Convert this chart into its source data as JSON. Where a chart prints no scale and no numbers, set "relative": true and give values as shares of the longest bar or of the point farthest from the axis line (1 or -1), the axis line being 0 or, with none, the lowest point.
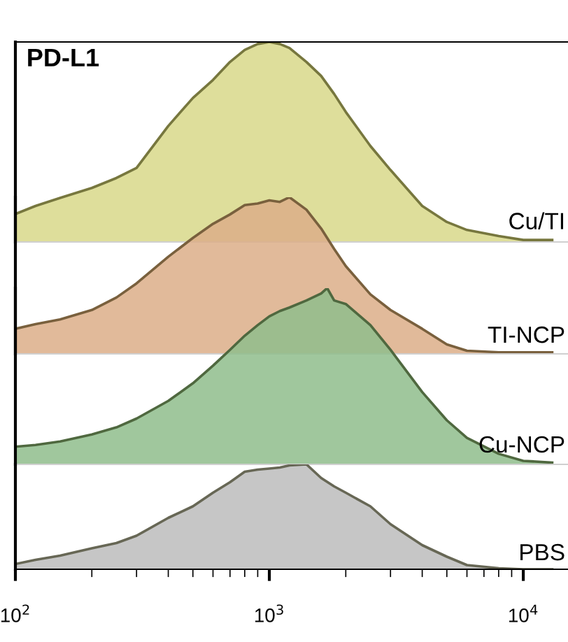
{
  "chart_data": [
    {
      "type": "area",
      "relative": true,
      "title": "PD-L1",
      "tick_labels": false,
      "xlim": [
        100,
        15000
      ],
      "log": "x",
      "x": [
        100,
        120,
        150,
        200,
        250,
        300,
        400,
        500,
        600,
        700,
        800,
        900,
        1000,
        1100,
        1200,
        1400,
        1600,
        1800,
        2000,
        2500,
        3000,
        4000,
        5000,
        6000,
        8000,
        10000,
        13000
      ],
      "series": [
        {
          "name": "Cu/TI",
          "color": "#d8d88a",
          "values": [
            0.14,
            0.18,
            0.22,
            0.27,
            0.32,
            0.37,
            0.58,
            0.72,
            0.81,
            0.9,
            0.96,
            0.99,
            1.0,
            0.99,
            0.97,
            0.9,
            0.83,
            0.74,
            0.65,
            0.48,
            0.36,
            0.18,
            0.1,
            0.06,
            0.03,
            0.01,
            0.01
          ]
        }
      ]
    },
    {
      "type": "area",
      "relative": true,
      "tick_labels": false,
      "xlim": [
        100,
        15000
      ],
      "log": "x",
      "x": [
        100,
        120,
        150,
        200,
        250,
        300,
        400,
        500,
        600,
        700,
        800,
        900,
        1000,
        1100,
        1200,
        1400,
        1600,
        1800,
        2000,
        2500,
        3000,
        4000,
        5000,
        6000,
        8000,
        10000,
        13000
      ],
      "series": [
        {
          "name": "TI-NCP",
          "color": "#dcae88",
          "values": [
            0.16,
            0.19,
            0.22,
            0.28,
            0.36,
            0.45,
            0.62,
            0.74,
            0.83,
            0.89,
            0.95,
            0.96,
            0.98,
            0.97,
            1.0,
            0.92,
            0.8,
            0.67,
            0.56,
            0.38,
            0.28,
            0.16,
            0.06,
            0.02,
            0.01,
            0.01,
            0.01
          ]
        }
      ]
    },
    {
      "type": "area",
      "relative": true,
      "tick_labels": false,
      "xlim": [
        100,
        15000
      ],
      "log": "x",
      "x": [
        100,
        120,
        150,
        200,
        250,
        300,
        400,
        500,
        600,
        700,
        800,
        900,
        1000,
        1100,
        1200,
        1400,
        1600,
        1690,
        1800,
        2000,
        2500,
        3000,
        4000,
        5000,
        6000,
        8000,
        10000,
        13000
      ],
      "series": [
        {
          "name": "Cu-NCP",
          "color": "#8fbd8c",
          "values": [
            0.1,
            0.11,
            0.13,
            0.17,
            0.21,
            0.26,
            0.36,
            0.46,
            0.56,
            0.65,
            0.73,
            0.79,
            0.84,
            0.87,
            0.89,
            0.93,
            0.97,
            1.0,
            0.93,
            0.91,
            0.79,
            0.65,
            0.41,
            0.25,
            0.15,
            0.06,
            0.02,
            0.01
          ]
        }
      ]
    },
    {
      "type": "area",
      "relative": true,
      "tick_labels": "x",
      "xlim": [
        100,
        15000
      ],
      "log": "x",
      "xticks": [
        {
          "value": 100,
          "label": "10$^{2}$"
        },
        {
          "value": 1000,
          "label": "10$^{3}$"
        },
        {
          "value": 10000,
          "label": "10$^{4}$"
        }
      ],
      "x": [
        100,
        120,
        150,
        200,
        250,
        300,
        400,
        500,
        600,
        700,
        800,
        900,
        1000,
        1100,
        1200,
        1400,
        1600,
        1800,
        2000,
        2500,
        3000,
        4000,
        5000,
        6000,
        8000,
        10000,
        13000
      ],
      "series": [
        {
          "name": "PBS",
          "color": "#bcbcbc",
          "values": [
            0.05,
            0.09,
            0.13,
            0.2,
            0.25,
            0.32,
            0.49,
            0.6,
            0.73,
            0.83,
            0.93,
            0.95,
            0.96,
            0.97,
            0.99,
            1.0,
            0.87,
            0.79,
            0.73,
            0.6,
            0.43,
            0.23,
            0.12,
            0.04,
            0.01,
            0.0,
            0.0
          ]
        }
      ]
    }
  ]
}
